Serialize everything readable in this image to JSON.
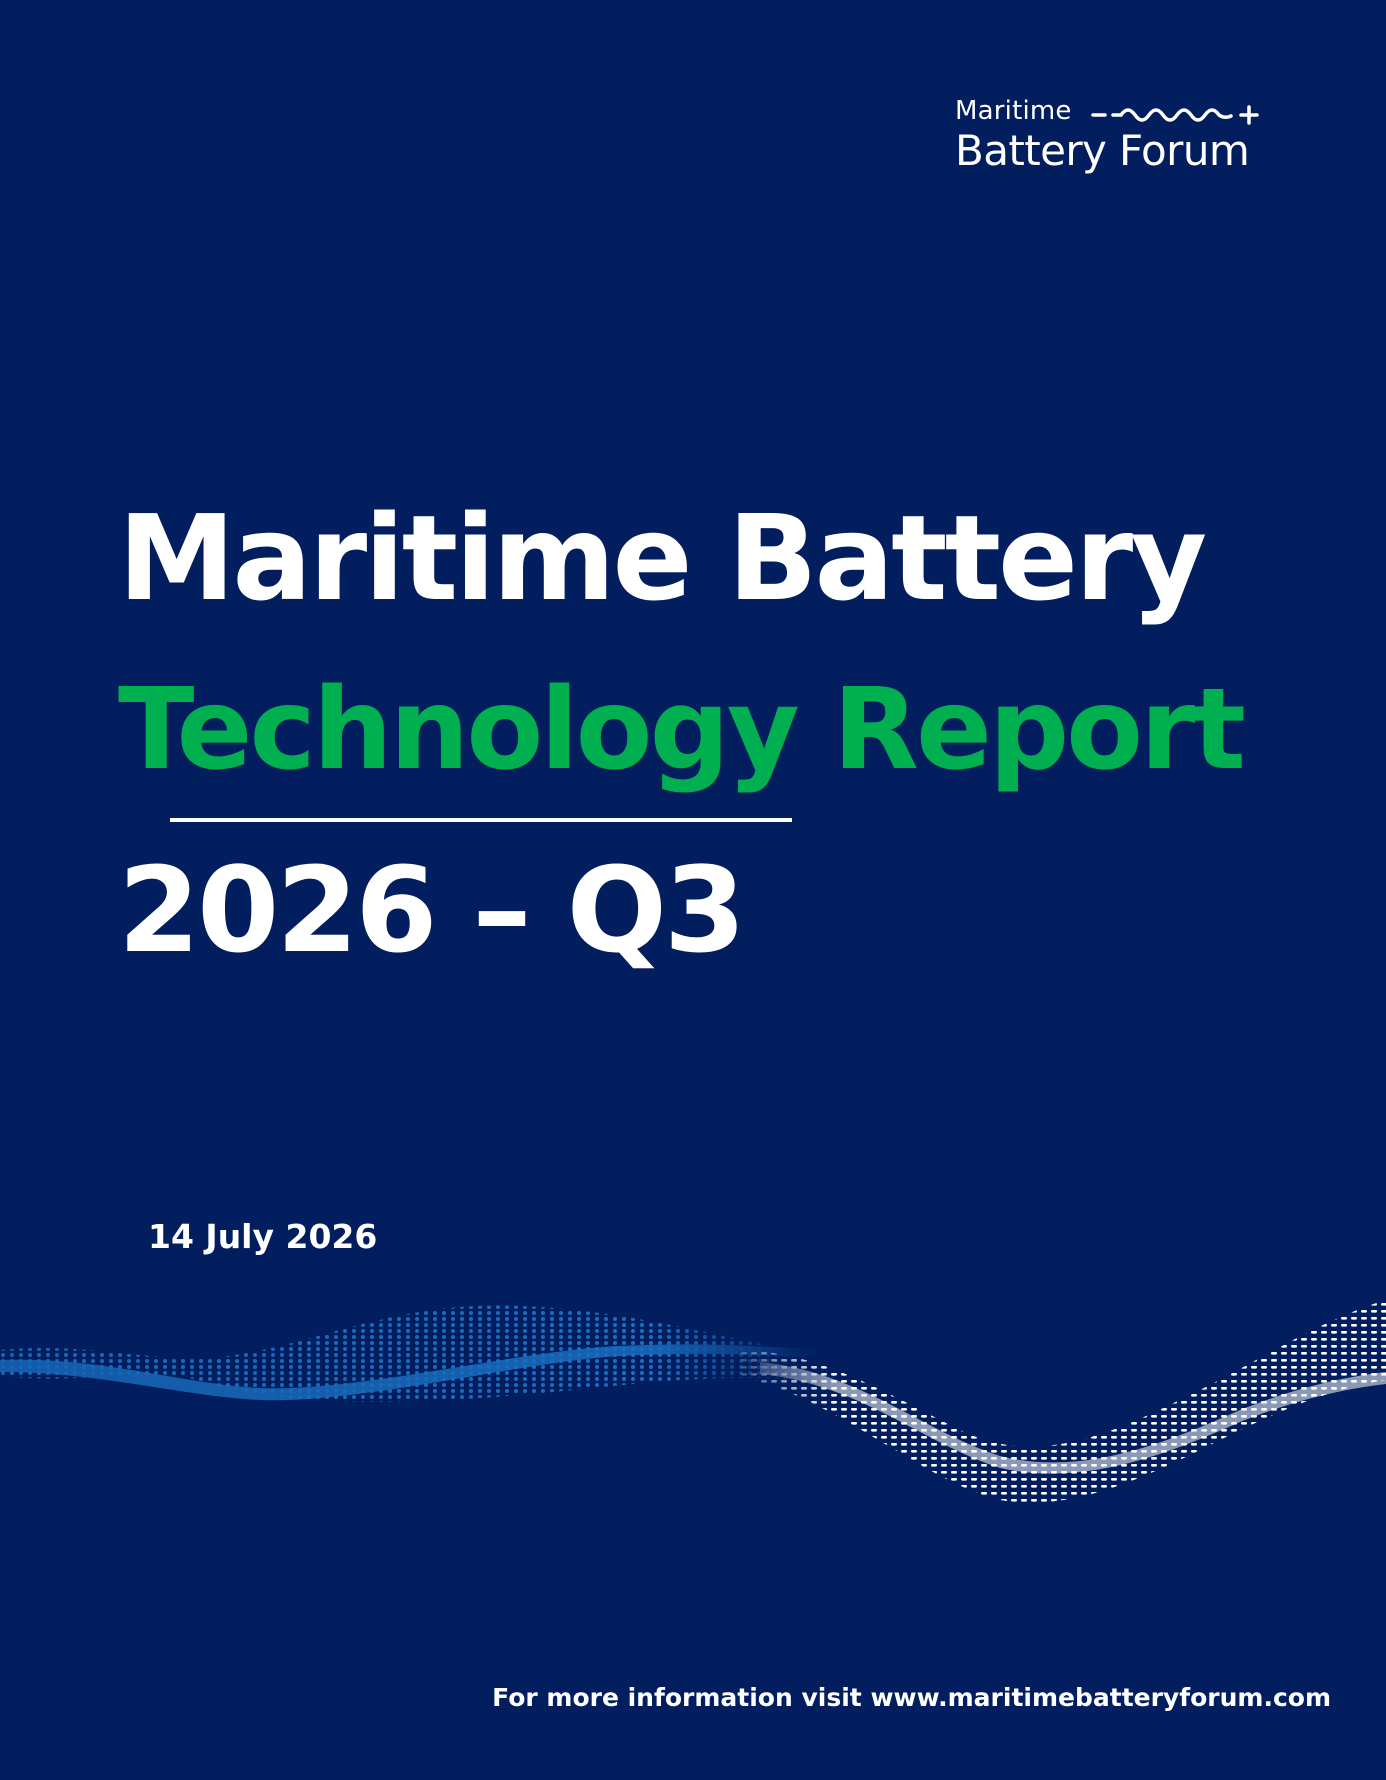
{
  "logo": {
    "line1": "Maritime",
    "line2": "Battery Forum"
  },
  "title": {
    "line1": "Maritime Battery",
    "line2": "Technology Report",
    "line3": "2026 – Q3"
  },
  "date": "14 July 2026",
  "footer": "For more information visit www.maritimebatteryforum.com",
  "colors": {
    "background": "#021e5e",
    "accent_green": "#00b050",
    "wave_blue": "#1a6fc0",
    "text": "#ffffff"
  },
  "icons": {
    "logo_wave": "sine-wave-icon",
    "decoration": "dotted-wave-decoration"
  }
}
